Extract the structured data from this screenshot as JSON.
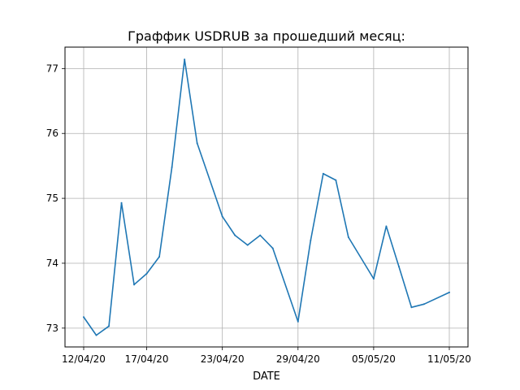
{
  "chart_data": {
    "type": "line",
    "title": "Граффик USDRUB за прошедший месяц:",
    "xlabel": "DATE",
    "ylabel": "",
    "grid": true,
    "x": [
      "12/04/20",
      "13/04/20",
      "14/04/20",
      "15/04/20",
      "16/04/20",
      "17/04/20",
      "18/04/20",
      "19/04/20",
      "20/04/20",
      "21/04/20",
      "22/04/20",
      "23/04/20",
      "24/04/20",
      "25/04/20",
      "26/04/20",
      "27/04/20",
      "28/04/20",
      "29/04/20",
      "30/04/20",
      "01/05/20",
      "02/05/20",
      "03/05/20",
      "04/05/20",
      "05/05/20",
      "06/05/20",
      "07/05/20",
      "08/05/20",
      "09/05/20",
      "10/05/20",
      "11/05/20"
    ],
    "x_ticks": [
      "12/04/20",
      "17/04/20",
      "23/04/20",
      "29/04/20",
      "05/05/20",
      "11/05/20"
    ],
    "y_ticks": [
      73,
      74,
      75,
      76,
      77
    ],
    "ylim": [
      72.71,
      77.33
    ],
    "series": [
      {
        "name": "",
        "color": "#1f77b4",
        "points": [
          [
            "12/04/20",
            73.17
          ],
          [
            "13/04/20",
            72.89
          ],
          [
            "14/04/20",
            73.03
          ],
          [
            "15/04/20",
            74.93
          ],
          [
            "16/04/20",
            73.67
          ],
          [
            "17/04/20",
            73.84
          ],
          [
            "18/04/20",
            74.1
          ],
          [
            "19/04/20",
            75.48
          ],
          [
            "20/04/20",
            77.14
          ],
          [
            "21/04/20",
            75.85
          ],
          [
            "23/04/20",
            74.72
          ],
          [
            "24/04/20",
            74.43
          ],
          [
            "25/04/20",
            74.28
          ],
          [
            "26/04/20",
            74.43
          ],
          [
            "27/04/20",
            74.23
          ],
          [
            "29/04/20",
            73.1
          ],
          [
            "30/04/20",
            74.35
          ],
          [
            "01/05/20",
            75.38
          ],
          [
            "02/05/20",
            75.28
          ],
          [
            "03/05/20",
            74.4
          ],
          [
            "05/05/20",
            73.76
          ],
          [
            "06/05/20",
            74.57
          ],
          [
            "07/05/20",
            73.95
          ],
          [
            "08/05/20",
            73.32
          ],
          [
            "09/05/20",
            73.37
          ],
          [
            "11/05/20",
            73.55
          ]
        ]
      }
    ]
  }
}
